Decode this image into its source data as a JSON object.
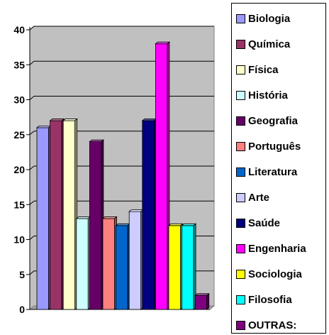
{
  "chart_data": {
    "type": "bar",
    "categories": [
      "Biologia",
      "Química",
      "Física",
      "História",
      "Geografia",
      "Português",
      "Literatura",
      "Arte",
      "Saúde",
      "Engenharia",
      "Sociologia",
      "Filosofia",
      "OUTRAS:"
    ],
    "values": [
      26,
      27,
      27,
      13,
      24,
      13,
      12,
      14,
      27,
      38,
      12,
      12,
      2
    ],
    "colors": [
      "#9999ff",
      "#993366",
      "#ffffcc",
      "#ccffff",
      "#660066",
      "#ff8080",
      "#0066cc",
      "#ccccff",
      "#000080",
      "#ff00ff",
      "#ffff00",
      "#00ffff",
      "#800080"
    ],
    "ylim": [
      0,
      40
    ],
    "yticks": [
      0,
      5,
      10,
      15,
      20,
      25,
      30,
      35,
      40
    ],
    "grid": true,
    "plot_background": "#c0c0c0",
    "legend_position": "right",
    "title": "",
    "xlabel": "",
    "ylabel": ""
  }
}
